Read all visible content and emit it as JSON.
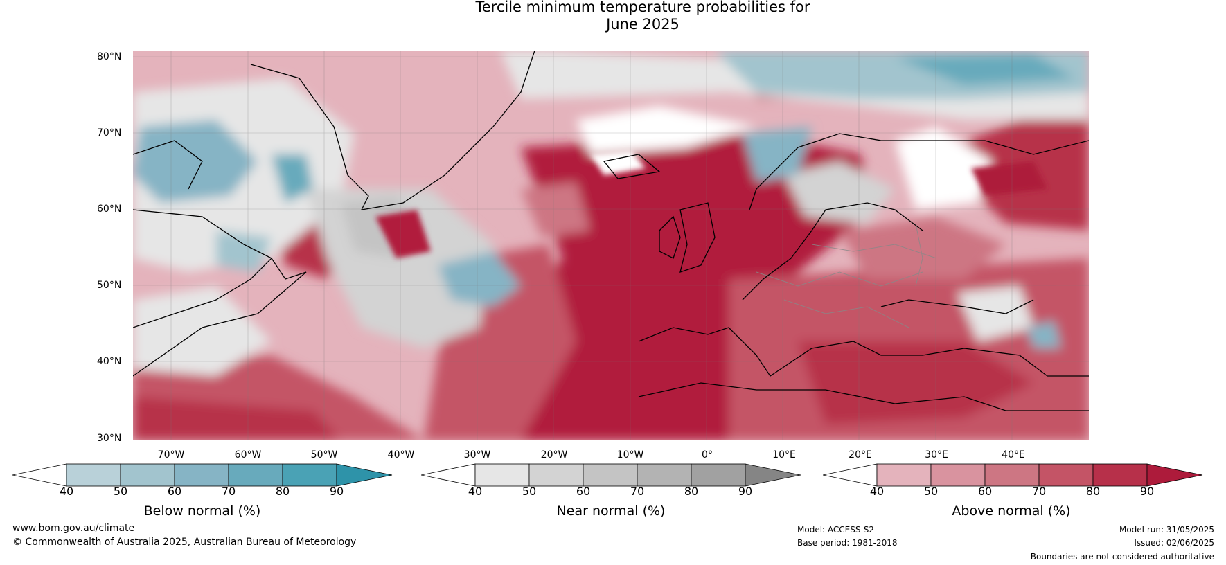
{
  "title_line1": "Tercile minimum temperature probabilities for",
  "title_line2": "June 2025",
  "lat_labels": [
    "80°N",
    "70°N",
    "60°N",
    "50°N",
    "40°N",
    "30°N"
  ],
  "lon_labels": [
    "70°W",
    "60°W",
    "50°W",
    "40°W",
    "30°W",
    "20°W",
    "10°W",
    "0°",
    "10°E",
    "20°E",
    "30°E",
    "40°E"
  ],
  "colorbars": [
    {
      "title": "Below normal (%)",
      "ticks": [
        "40",
        "50",
        "60",
        "70",
        "80",
        "90"
      ],
      "colors": [
        "#b9d1d9",
        "#a2c4ce",
        "#86b4c5",
        "#68aabc",
        "#4aa2b5",
        "#2e93a9"
      ]
    },
    {
      "title": "Near normal (%)",
      "ticks": [
        "40",
        "50",
        "60",
        "70",
        "80",
        "90"
      ],
      "colors": [
        "#e6e6e6",
        "#d3d3d3",
        "#c4c4c4",
        "#b3b3b3",
        "#a1a1a1",
        "#858585"
      ]
    },
    {
      "title": "Above normal (%)",
      "ticks": [
        "40",
        "50",
        "60",
        "70",
        "80",
        "90"
      ],
      "colors": [
        "#e4b3bc",
        "#d9939f",
        "#cd7683",
        "#c45466",
        "#b7304a",
        "#ad1b3b"
      ]
    }
  ],
  "colors": {
    "max_above": "#b11e3c",
    "near_white": "#ffffff",
    "coast": "#000000",
    "border": "#888888"
  },
  "footer": {
    "website": "www.bom.gov.au/climate",
    "copyright": "© Commonwealth of Australia 2025, Australian Bureau of Meteorology",
    "model": "Model: ACCESS-S2",
    "base_period": "Base period: 1981-2018",
    "model_run": "Model run: 31/05/2025",
    "issued": "Issued: 02/06/2025",
    "disclaimer": "Boundaries are not considered authoritative"
  }
}
